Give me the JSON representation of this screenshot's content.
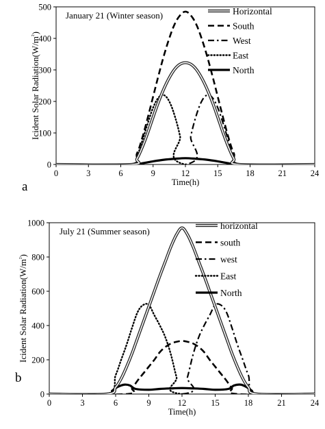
{
  "chart_data": [
    {
      "type": "line",
      "panel_label": "a",
      "title": "January 21 (Winter season)",
      "xlabel": "Time(h)",
      "ylabel": "Icident Solar Radiation(W/m²)",
      "xlim": [
        0,
        24
      ],
      "ylim": [
        0,
        500
      ],
      "xticks": [
        0,
        3,
        6,
        9,
        12,
        15,
        18,
        21,
        24
      ],
      "yticks": [
        0,
        100,
        200,
        300,
        400,
        500
      ],
      "grid": false,
      "legend_position": "top-right",
      "series": [
        {
          "name": "Horizontal",
          "style": "double",
          "x": [
            0,
            7.0,
            7.5,
            8,
            8.5,
            9,
            9.5,
            10,
            10.5,
            11,
            11.5,
            12,
            12.5,
            13,
            13.5,
            14,
            14.5,
            15,
            15.5,
            16,
            16.5,
            17.0,
            24
          ],
          "y": [
            0,
            0,
            18,
            55,
            100,
            150,
            198,
            240,
            275,
            302,
            318,
            323,
            318,
            302,
            275,
            240,
            198,
            150,
            100,
            55,
            18,
            0,
            0
          ]
        },
        {
          "name": "South",
          "style": "dashed",
          "x": [
            0,
            6.8,
            7.5,
            8,
            8.5,
            9,
            9.5,
            10,
            10.5,
            11,
            11.5,
            12,
            12.5,
            13,
            13.5,
            14,
            14.5,
            15,
            15.5,
            16,
            16.5,
            17.2,
            24
          ],
          "y": [
            0,
            0,
            35,
            85,
            148,
            215,
            282,
            345,
            400,
            445,
            473,
            485,
            473,
            445,
            400,
            345,
            282,
            215,
            148,
            85,
            35,
            0,
            0
          ]
        },
        {
          "name": "West",
          "style": "dashdot",
          "x": [
            0,
            12.0,
            12.5,
            13,
            13.5,
            14,
            14.5,
            15,
            15.5,
            16,
            16.5,
            17.0,
            24
          ],
          "y": [
            0,
            0,
            90,
            155,
            200,
            220,
            212,
            180,
            130,
            75,
            25,
            0,
            0
          ]
        },
        {
          "name": "East",
          "style": "dotted",
          "x": [
            0,
            7.0,
            7.5,
            8,
            8.5,
            9,
            9.5,
            10,
            10.5,
            11,
            11.5,
            12.0,
            24
          ],
          "y": [
            0,
            0,
            25,
            75,
            130,
            180,
            212,
            220,
            200,
            155,
            90,
            0,
            0
          ]
        },
        {
          "name": "North",
          "style": "solid-thick",
          "x": [
            0,
            7.0,
            8,
            9,
            10,
            11,
            12,
            13,
            14,
            15,
            16,
            17.0,
            24
          ],
          "y": [
            0,
            0,
            4,
            10,
            15,
            18,
            20,
            18,
            15,
            10,
            4,
            0,
            0
          ]
        }
      ]
    },
    {
      "type": "line",
      "panel_label": "b",
      "title": "July 21 (Summer season)",
      "xlabel": "Time(h)",
      "ylabel": "Icident Solar Radiation(W/m²)",
      "xlim": [
        0,
        24
      ],
      "ylim": [
        0,
        1000
      ],
      "xticks": [
        0,
        3,
        6,
        9,
        12,
        15,
        18,
        21,
        24
      ],
      "yticks": [
        0,
        200,
        400,
        600,
        800,
        1000
      ],
      "grid": false,
      "legend_position": "top-right",
      "series": [
        {
          "name": "horizontal",
          "style": "double",
          "x": [
            0,
            5.2,
            6,
            6.5,
            7,
            7.5,
            8,
            8.5,
            9,
            9.5,
            10,
            10.5,
            11,
            11.5,
            12,
            12.5,
            13,
            13.5,
            14,
            14.5,
            15,
            15.5,
            16,
            16.5,
            17,
            17.5,
            18,
            18.8,
            24
          ],
          "y": [
            0,
            0,
            40,
            90,
            160,
            240,
            330,
            420,
            510,
            600,
            690,
            775,
            860,
            930,
            970,
            930,
            860,
            775,
            690,
            600,
            510,
            420,
            330,
            240,
            160,
            90,
            40,
            0,
            0
          ]
        },
        {
          "name": "south",
          "style": "dashed",
          "x": [
            0,
            7.0,
            7.5,
            8,
            8.5,
            9,
            9.5,
            10,
            10.5,
            11,
            11.5,
            12,
            12.5,
            13,
            13.5,
            14,
            14.5,
            15,
            15.5,
            16,
            16.5,
            17.0,
            24
          ],
          "y": [
            0,
            0,
            35,
            80,
            120,
            160,
            200,
            245,
            275,
            295,
            305,
            310,
            305,
            295,
            275,
            245,
            200,
            160,
            120,
            80,
            35,
            0,
            0
          ]
        },
        {
          "name": "west",
          "style": "dashdot",
          "x": [
            0,
            12.0,
            12.5,
            13,
            13.5,
            14,
            14.5,
            15,
            15.5,
            16,
            16.5,
            17,
            17.5,
            18,
            18.8,
            24
          ],
          "y": [
            0,
            0,
            100,
            230,
            330,
            400,
            460,
            520,
            520,
            480,
            390,
            290,
            200,
            110,
            0,
            0
          ]
        },
        {
          "name": "East",
          "style": "dotted",
          "x": [
            0,
            5.2,
            6,
            6.5,
            7,
            7.5,
            8,
            8.5,
            9,
            9.5,
            10,
            10.5,
            11,
            11.5,
            12.0,
            24
          ],
          "y": [
            0,
            0,
            110,
            200,
            290,
            390,
            480,
            520,
            520,
            460,
            400,
            330,
            230,
            100,
            0,
            0
          ]
        },
        {
          "name": "North",
          "style": "solid-thick",
          "x": [
            0,
            5.2,
            5.7,
            6.2,
            6.8,
            7.3,
            7.8,
            9,
            10,
            11,
            12,
            13,
            14,
            15,
            16.2,
            16.7,
            17.3,
            17.8,
            18.3,
            18.8,
            24
          ],
          "y": [
            0,
            0,
            20,
            42,
            55,
            50,
            30,
            25,
            30,
            33,
            35,
            33,
            30,
            25,
            30,
            50,
            55,
            42,
            20,
            0,
            0
          ]
        }
      ]
    }
  ]
}
